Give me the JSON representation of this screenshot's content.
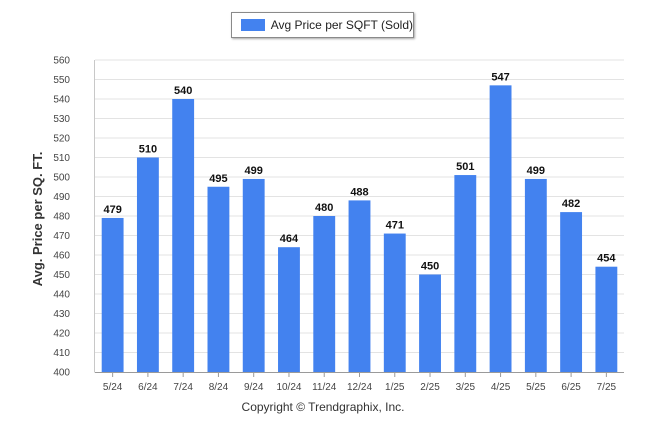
{
  "chart_data": {
    "type": "bar",
    "legend": {
      "label": "Avg Price per SQFT (Sold)",
      "placement": "top-center"
    },
    "ylabel": "Avg. Price per SQ. FT.",
    "xlabel": "",
    "ylim": [
      400,
      560
    ],
    "ytick_step": 10,
    "grid": true,
    "categories": [
      "5/24",
      "6/24",
      "7/24",
      "8/24",
      "9/24",
      "10/24",
      "11/24",
      "12/24",
      "1/25",
      "2/25",
      "3/25",
      "4/25",
      "5/25",
      "6/25",
      "7/25"
    ],
    "series": [
      {
        "name": "Avg Price per SQFT (Sold)",
        "values": [
          479,
          510,
          540,
          495,
          499,
          464,
          480,
          488,
          471,
          450,
          501,
          547,
          499,
          482,
          454
        ],
        "color": "#4382ef"
      }
    ]
  },
  "footer": {
    "credit": "Copyright © Trendgraphix, Inc."
  }
}
